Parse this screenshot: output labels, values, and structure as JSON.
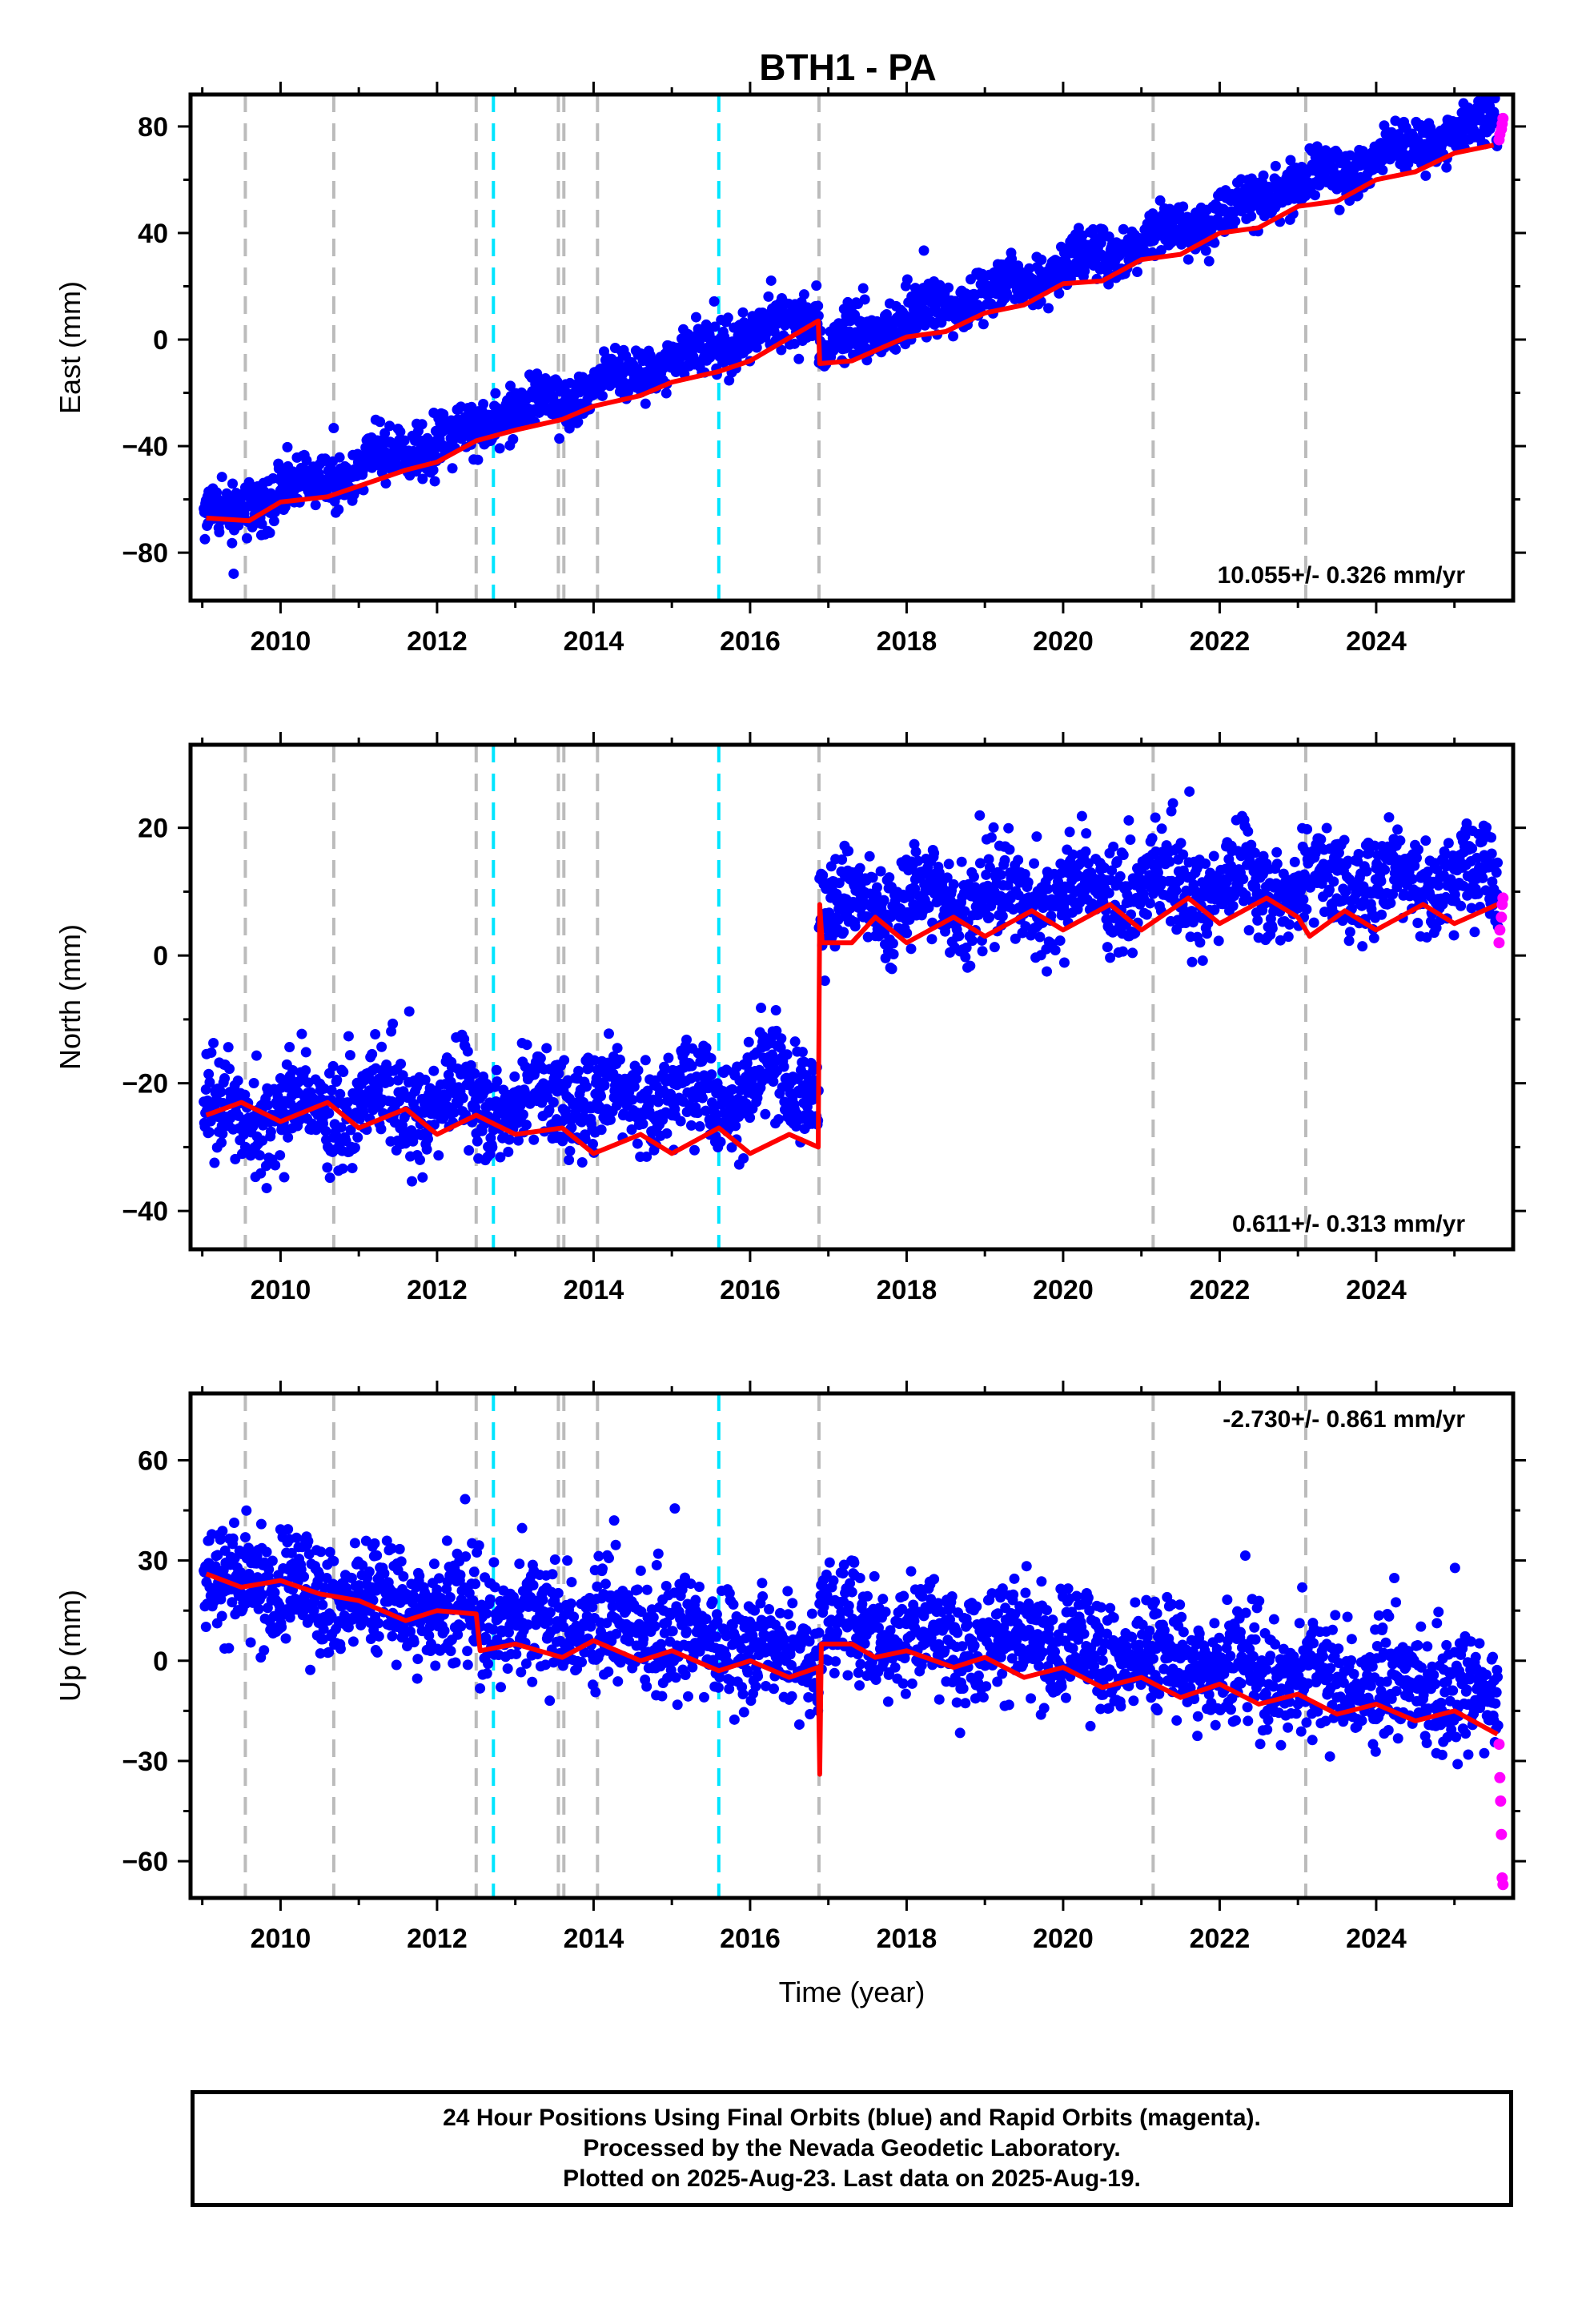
{
  "title": "BTH1 - PA",
  "colors": {
    "final_orbits": "#0000ff",
    "rapid_orbits": "#ff00ff",
    "model_fit": "#ff0000",
    "event_line": "#bbbbbb",
    "event_line_highlight": "#00e5ff"
  },
  "chart_data": [
    {
      "type": "scatter",
      "panel": "east",
      "xlabel": "",
      "ylabel": "East (mm)",
      "xlim": [
        2008.85,
        2025.75
      ],
      "ylim": [
        -98,
        92
      ],
      "xticks": [
        2010,
        2012,
        2014,
        2016,
        2018,
        2020,
        2022,
        2024
      ],
      "yticks": [
        -80,
        -40,
        0,
        40,
        80
      ],
      "grid": false,
      "rate_label": "10.055+/- 0.326 mm/yr",
      "rate_label_position": "bottom-right",
      "model": {
        "offset": -68,
        "rate": 10.055,
        "t0": 2009.0,
        "step_time": 2016.88,
        "step": -15,
        "seasonal_amp": 3.0,
        "noise": 5
      },
      "model_line_points": [
        [
          2009.05,
          -67
        ],
        [
          2009.6,
          -68
        ],
        [
          2010.0,
          -61
        ],
        [
          2010.6,
          -59
        ],
        [
          2011.0,
          -55
        ],
        [
          2011.6,
          -49
        ],
        [
          2012.0,
          -46
        ],
        [
          2012.5,
          -38
        ],
        [
          2013.0,
          -34
        ],
        [
          2013.6,
          -30
        ],
        [
          2014.0,
          -25
        ],
        [
          2014.6,
          -21
        ],
        [
          2015.0,
          -16
        ],
        [
          2015.6,
          -12
        ],
        [
          2016.0,
          -8
        ],
        [
          2016.87,
          7
        ],
        [
          2016.89,
          -9
        ],
        [
          2017.3,
          -8
        ],
        [
          2018.0,
          1
        ],
        [
          2018.5,
          3
        ],
        [
          2019.0,
          10
        ],
        [
          2019.5,
          13
        ],
        [
          2020.0,
          21
        ],
        [
          2020.5,
          22
        ],
        [
          2021.0,
          30
        ],
        [
          2021.5,
          32
        ],
        [
          2022.0,
          40
        ],
        [
          2022.5,
          42
        ],
        [
          2023.0,
          50
        ],
        [
          2023.5,
          52
        ],
        [
          2024.0,
          60
        ],
        [
          2024.5,
          63
        ],
        [
          2025.0,
          70
        ],
        [
          2025.5,
          73
        ]
      ],
      "rapid_points": [
        [
          2025.57,
          75
        ],
        [
          2025.58,
          77
        ],
        [
          2025.6,
          79
        ],
        [
          2025.61,
          81
        ],
        [
          2025.62,
          83
        ]
      ]
    },
    {
      "type": "scatter",
      "panel": "north",
      "xlabel": "",
      "ylabel": "North (mm)",
      "xlim": [
        2008.85,
        2025.75
      ],
      "ylim": [
        -46,
        33
      ],
      "xticks": [
        2010,
        2012,
        2014,
        2016,
        2018,
        2020,
        2022,
        2024
      ],
      "yticks": [
        -40,
        -20,
        0,
        20
      ],
      "grid": false,
      "rate_label": "0.611+/- 0.313 mm/yr",
      "rate_label_position": "bottom-right",
      "model": {
        "offset": -25,
        "rate": 0.611,
        "t0": 2009.0,
        "step_time": 2016.88,
        "step": 28,
        "seasonal_amp": 2.5,
        "noise": 4
      },
      "model_line_points": [
        [
          2009.05,
          -25
        ],
        [
          2009.5,
          -23
        ],
        [
          2010.0,
          -26
        ],
        [
          2010.6,
          -23
        ],
        [
          2011.0,
          -27
        ],
        [
          2011.6,
          -24
        ],
        [
          2012.0,
          -28
        ],
        [
          2012.5,
          -25
        ],
        [
          2013.0,
          -28
        ],
        [
          2013.6,
          -27
        ],
        [
          2014.0,
          -31
        ],
        [
          2014.6,
          -28
        ],
        [
          2015.0,
          -31
        ],
        [
          2015.6,
          -27
        ],
        [
          2016.0,
          -31
        ],
        [
          2016.5,
          -28
        ],
        [
          2016.87,
          -30
        ],
        [
          2016.89,
          8
        ],
        [
          2016.92,
          2
        ],
        [
          2017.3,
          2
        ],
        [
          2017.6,
          6
        ],
        [
          2018.0,
          2
        ],
        [
          2018.6,
          6
        ],
        [
          2019.0,
          3
        ],
        [
          2019.6,
          7
        ],
        [
          2020.0,
          4
        ],
        [
          2020.6,
          8
        ],
        [
          2021.0,
          4
        ],
        [
          2021.6,
          9
        ],
        [
          2022.0,
          5
        ],
        [
          2022.6,
          9
        ],
        [
          2023.0,
          6
        ],
        [
          2023.15,
          3
        ],
        [
          2023.6,
          7
        ],
        [
          2024.0,
          4
        ],
        [
          2024.6,
          8
        ],
        [
          2025.0,
          5
        ],
        [
          2025.55,
          8
        ]
      ],
      "rapid_points": [
        [
          2025.57,
          2
        ],
        [
          2025.58,
          4
        ],
        [
          2025.6,
          6
        ],
        [
          2025.61,
          8
        ],
        [
          2025.62,
          9
        ]
      ]
    },
    {
      "type": "scatter",
      "panel": "up",
      "xlabel": "Time (year)",
      "ylabel": "Up (mm)",
      "xlim": [
        2008.85,
        2025.75
      ],
      "ylim": [
        -71,
        80
      ],
      "xticks": [
        2010,
        2012,
        2014,
        2016,
        2018,
        2020,
        2022,
        2024
      ],
      "yticks": [
        -60,
        -30,
        0,
        30,
        60
      ],
      "grid": false,
      "rate_label": "-2.730+/- 0.861 mm/yr",
      "rate_label_position": "top-right",
      "model": {
        "offset": 24,
        "rate": -2.73,
        "t0": 2009.0,
        "step_time": 2016.88,
        "step": 10,
        "seasonal_amp": 3.0,
        "noise": 9
      },
      "model_line_points": [
        [
          2009.05,
          26
        ],
        [
          2009.5,
          22
        ],
        [
          2010.0,
          24
        ],
        [
          2010.5,
          20
        ],
        [
          2011.0,
          18
        ],
        [
          2011.6,
          12
        ],
        [
          2012.0,
          15
        ],
        [
          2012.5,
          14
        ],
        [
          2012.55,
          3
        ],
        [
          2013.0,
          5
        ],
        [
          2013.6,
          1
        ],
        [
          2014.0,
          6
        ],
        [
          2014.6,
          0
        ],
        [
          2015.0,
          3
        ],
        [
          2015.6,
          -3
        ],
        [
          2016.0,
          0
        ],
        [
          2016.5,
          -5
        ],
        [
          2016.87,
          -2
        ],
        [
          2016.89,
          -34
        ],
        [
          2016.91,
          5
        ],
        [
          2017.3,
          5
        ],
        [
          2017.6,
          1
        ],
        [
          2018.0,
          3
        ],
        [
          2018.6,
          -2
        ],
        [
          2019.0,
          1
        ],
        [
          2019.5,
          -5
        ],
        [
          2020.0,
          -2
        ],
        [
          2020.5,
          -8
        ],
        [
          2021.0,
          -5
        ],
        [
          2021.5,
          -11
        ],
        [
          2022.0,
          -7
        ],
        [
          2022.5,
          -13
        ],
        [
          2023.0,
          -10
        ],
        [
          2023.5,
          -16
        ],
        [
          2024.0,
          -13
        ],
        [
          2024.5,
          -18
        ],
        [
          2025.0,
          -15
        ],
        [
          2025.55,
          -22
        ]
      ],
      "rapid_points": [
        [
          2025.57,
          -25
        ],
        [
          2025.58,
          -35
        ],
        [
          2025.59,
          -42
        ],
        [
          2025.6,
          -52
        ],
        [
          2025.61,
          -65
        ],
        [
          2025.62,
          -67
        ]
      ]
    }
  ],
  "event_lines": {
    "gray": [
      2009.55,
      2010.68,
      2012.5,
      2013.55,
      2013.62,
      2014.05,
      2016.88,
      2021.15,
      2023.1
    ],
    "cyan": [
      2012.72,
      2015.6
    ]
  },
  "caption": {
    "line1": "24 Hour Positions Using Final Orbits (blue) and Rapid Orbits (magenta).",
    "line2": "Processed by the Nevada Geodetic Laboratory.",
    "line3": "Plotted on 2025-Aug-23. Last data on 2025-Aug-19."
  }
}
